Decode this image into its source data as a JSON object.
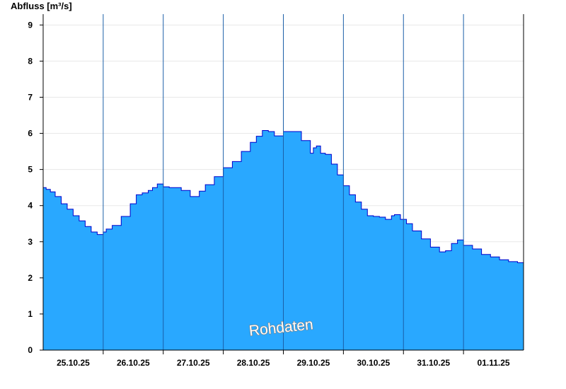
{
  "chart_data": {
    "type": "area",
    "ylabel": "Abfluss [m³/s]",
    "ylim": [
      0,
      9.3
    ],
    "yticks": [
      0,
      1,
      2,
      3,
      4,
      5,
      6,
      7,
      8,
      9
    ],
    "xlim": [
      0,
      8
    ],
    "day_labels": [
      "25.10.25",
      "26.10.25",
      "27.10.25",
      "28.10.25",
      "29.10.25",
      "30.10.25",
      "31.10.25",
      "01.11.25"
    ],
    "grid": true,
    "watermark": "Rohdaten",
    "colors": {
      "fill": "#29a8ff",
      "line": "#0000cc",
      "grid": "#e8e8e8",
      "axis": "#000000",
      "daylines": "#1b5fa8"
    },
    "series": [
      {
        "x": [
          0.0,
          0.05,
          0.12,
          0.2,
          0.3,
          0.4,
          0.5,
          0.6,
          0.7,
          0.8,
          0.9,
          1.0,
          1.05,
          1.15,
          1.3,
          1.45,
          1.55,
          1.65,
          1.75,
          1.82,
          1.9,
          2.0,
          2.1,
          2.2,
          2.3,
          2.45,
          2.6,
          2.7,
          2.85,
          3.0,
          3.15,
          3.3,
          3.45,
          3.55,
          3.65,
          3.75,
          3.85,
          4.0,
          4.15,
          4.3,
          4.45,
          4.5,
          4.55,
          4.62,
          4.7,
          4.8,
          4.9,
          5.0,
          5.1,
          5.2,
          5.3,
          5.4,
          5.5,
          5.6,
          5.7,
          5.8,
          5.85,
          5.95,
          6.05,
          6.15,
          6.3,
          6.45,
          6.6,
          6.7,
          6.8,
          6.9,
          7.0,
          7.15,
          7.3,
          7.45,
          7.6,
          7.75,
          7.9,
          8.0
        ],
        "y": [
          4.5,
          4.45,
          4.38,
          4.25,
          4.05,
          3.9,
          3.72,
          3.58,
          3.42,
          3.27,
          3.2,
          3.27,
          3.35,
          3.45,
          3.7,
          4.05,
          4.3,
          4.35,
          4.42,
          4.5,
          4.6,
          4.52,
          4.5,
          4.5,
          4.42,
          4.25,
          4.4,
          4.58,
          4.8,
          5.05,
          5.22,
          5.5,
          5.75,
          5.92,
          6.08,
          6.05,
          5.93,
          6.05,
          6.05,
          5.8,
          5.45,
          5.6,
          5.65,
          5.45,
          5.42,
          5.15,
          4.85,
          4.55,
          4.3,
          4.1,
          3.9,
          3.72,
          3.7,
          3.68,
          3.62,
          3.72,
          3.75,
          3.62,
          3.5,
          3.3,
          3.08,
          2.85,
          2.72,
          2.75,
          2.95,
          3.05,
          2.9,
          2.8,
          2.65,
          2.58,
          2.5,
          2.45,
          2.42,
          2.38
        ]
      }
    ]
  }
}
